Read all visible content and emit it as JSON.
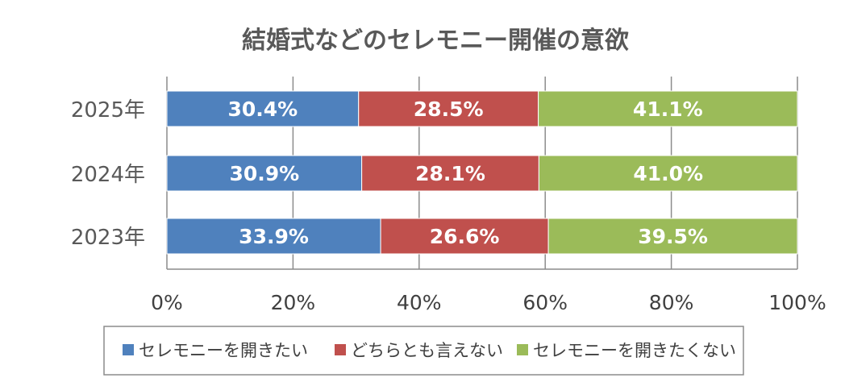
{
  "chart_data": {
    "type": "bar",
    "orientation": "horizontal",
    "stacked": "percent",
    "title": "結婚式などのセレモニー開催の意欲",
    "categories": [
      "2025年",
      "2024年",
      "2023年"
    ],
    "series": [
      {
        "name": "セレモニーを開きたい",
        "color": "#4F81BD",
        "values": [
          30.4,
          30.9,
          33.9
        ],
        "labels": [
          "30.4%",
          "30.9%",
          "33.9%"
        ]
      },
      {
        "name": "どちらとも言えない",
        "color": "#C0504D",
        "values": [
          28.5,
          28.1,
          26.6
        ],
        "labels": [
          "28.5%",
          "28.1%",
          "26.6%"
        ]
      },
      {
        "name": "セレモニーを開きたくない",
        "color": "#9BBB59",
        "values": [
          41.1,
          41.0,
          39.5
        ],
        "labels": [
          "41.1%",
          "41.0%",
          "39.5%"
        ]
      }
    ],
    "x_ticks": [
      "0%",
      "20%",
      "40%",
      "60%",
      "80%",
      "100%"
    ],
    "xlim": [
      0,
      100
    ],
    "grid": true,
    "legend_position": "bottom"
  }
}
